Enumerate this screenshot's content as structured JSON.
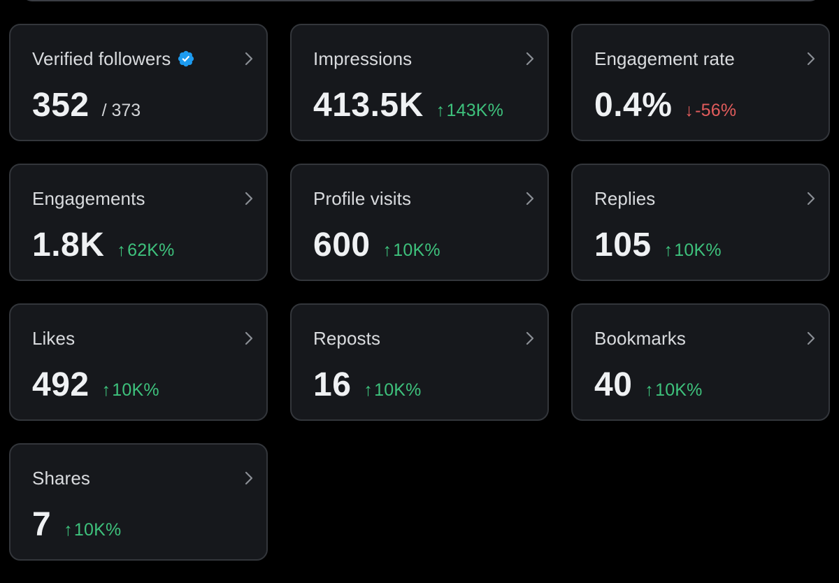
{
  "colors": {
    "background": "#000000",
    "card": "#16181c",
    "border": "#33363b",
    "up": "#3ec17c",
    "down": "#e25c5c",
    "verified": "#1d9bf0"
  },
  "cards": [
    {
      "title": "Verified followers",
      "value": "352",
      "sub": "/ 373",
      "verified_icon": "verified-badge-icon"
    },
    {
      "title": "Impressions",
      "value": "413.5K",
      "change": "143K%",
      "direction": "up",
      "arrow": "↑"
    },
    {
      "title": "Engagement rate",
      "value": "0.4%",
      "change": "-56%",
      "direction": "down",
      "arrow": "↓"
    },
    {
      "title": "Engagements",
      "value": "1.8K",
      "change": "62K%",
      "direction": "up",
      "arrow": "↑"
    },
    {
      "title": "Profile visits",
      "value": "600",
      "change": "10K%",
      "direction": "up",
      "arrow": "↑"
    },
    {
      "title": "Replies",
      "value": "105",
      "change": "10K%",
      "direction": "up",
      "arrow": "↑"
    },
    {
      "title": "Likes",
      "value": "492",
      "change": "10K%",
      "direction": "up",
      "arrow": "↑"
    },
    {
      "title": "Reposts",
      "value": "16",
      "change": "10K%",
      "direction": "up",
      "arrow": "↑"
    },
    {
      "title": "Bookmarks",
      "value": "40",
      "change": "10K%",
      "direction": "up",
      "arrow": "↑"
    },
    {
      "title": "Shares",
      "value": "7",
      "change": "10K%",
      "direction": "up",
      "arrow": "↑"
    }
  ]
}
